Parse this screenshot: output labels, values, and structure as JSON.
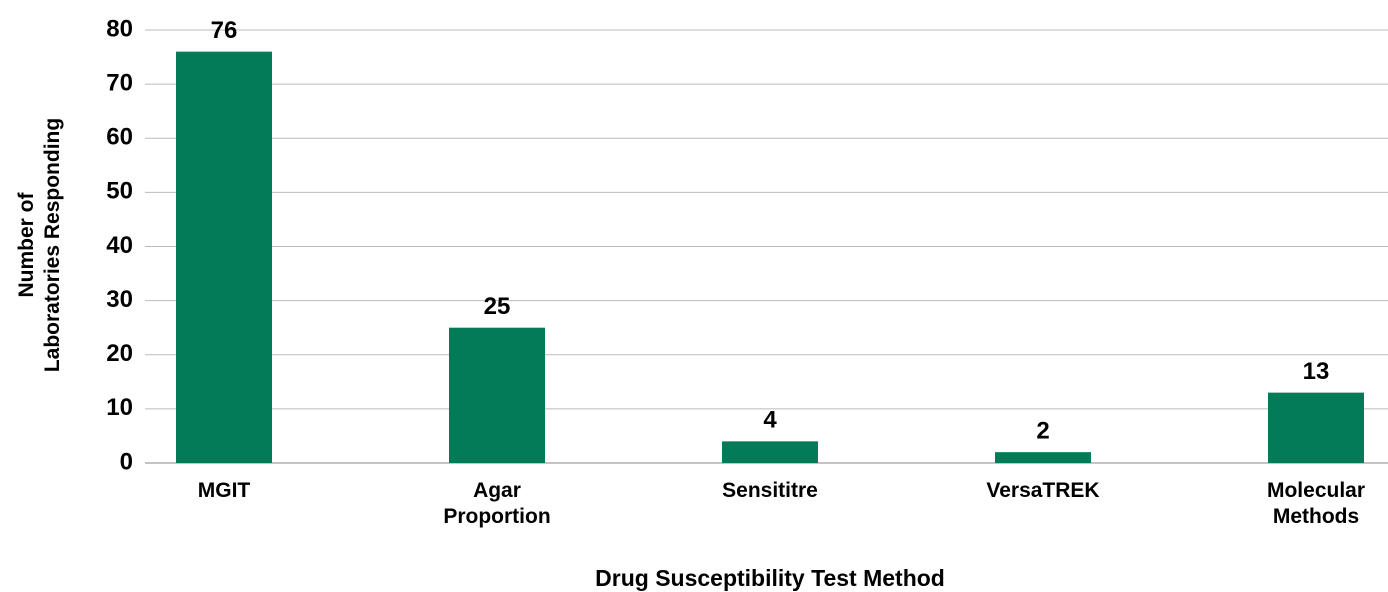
{
  "chart_data": {
    "type": "bar",
    "xlabel": "Drug Susceptibility Test Method",
    "ylabel": [
      "Number of",
      "Laboratories Responding"
    ],
    "categories": [
      "MGIT",
      "Agar Proportion",
      "Sensititre",
      "VersaTREK",
      "Molecular Methods"
    ],
    "values": [
      76,
      25,
      4,
      2,
      13
    ],
    "color": "#037a58",
    "ylim": [
      0,
      80
    ],
    "yticks": [
      0,
      10,
      20,
      30,
      40,
      50,
      60,
      70,
      80
    ],
    "grid": true
  }
}
